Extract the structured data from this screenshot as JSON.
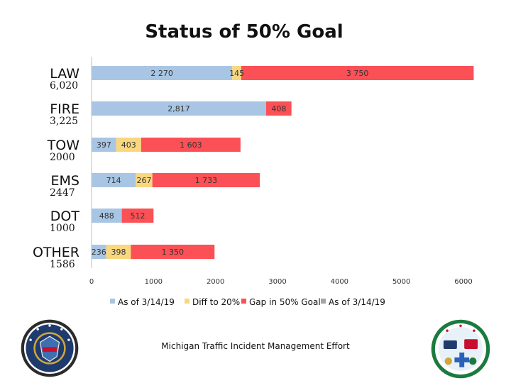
{
  "title": "Status of 50% Goal",
  "footer": "Michigan Traffic Incident Management Effort",
  "colors": {
    "as_of": "#a8c6e4",
    "diff": "#f9d77e",
    "gap": "#fb5055",
    "as_of_2": "#a5a5a5"
  },
  "chart_data": {
    "type": "bar",
    "orientation": "horizontal",
    "stacked": true,
    "categories": [
      {
        "name": "LAW",
        "total": "6,020"
      },
      {
        "name": "FIRE",
        "total": "3,225"
      },
      {
        "name": "TOW",
        "total": "2000"
      },
      {
        "name": "EMS",
        "total": "2447"
      },
      {
        "name": "DOT",
        "total": "1000"
      },
      {
        "name": "OTHER",
        "total": "1586"
      }
    ],
    "series": [
      {
        "name": "As of 3/14/19",
        "color": "#a8c6e4",
        "values": [
          2270,
          2817,
          397,
          714,
          488,
          236
        ],
        "labels": [
          "2 270",
          "2,817",
          "397",
          "714",
          "488",
          "236"
        ]
      },
      {
        "name": "Diff to 20%",
        "color": "#f9d77e",
        "values": [
          145,
          0,
          403,
          267,
          0,
          398
        ],
        "labels": [
          "145",
          "",
          "403",
          "267",
          "",
          "398"
        ]
      },
      {
        "name": "Gap in 50% Goal",
        "color": "#fb5055",
        "values": [
          3750,
          408,
          1603,
          1733,
          512,
          1350
        ],
        "labels": [
          "3 750",
          "408",
          "1 603",
          "1 733",
          "512",
          "1 350"
        ]
      },
      {
        "name": "As of 3/14/19",
        "color": "#a5a5a5",
        "values": [
          0,
          0,
          0,
          0,
          0,
          0
        ],
        "labels": [
          "",
          "",
          "",
          "",
          "",
          ""
        ]
      }
    ],
    "xlim": [
      0,
      6000
    ],
    "xticks": [
      0,
      1000,
      2000,
      3000,
      4000,
      5000,
      6000
    ],
    "grid": false,
    "legend_position": "bottom"
  }
}
